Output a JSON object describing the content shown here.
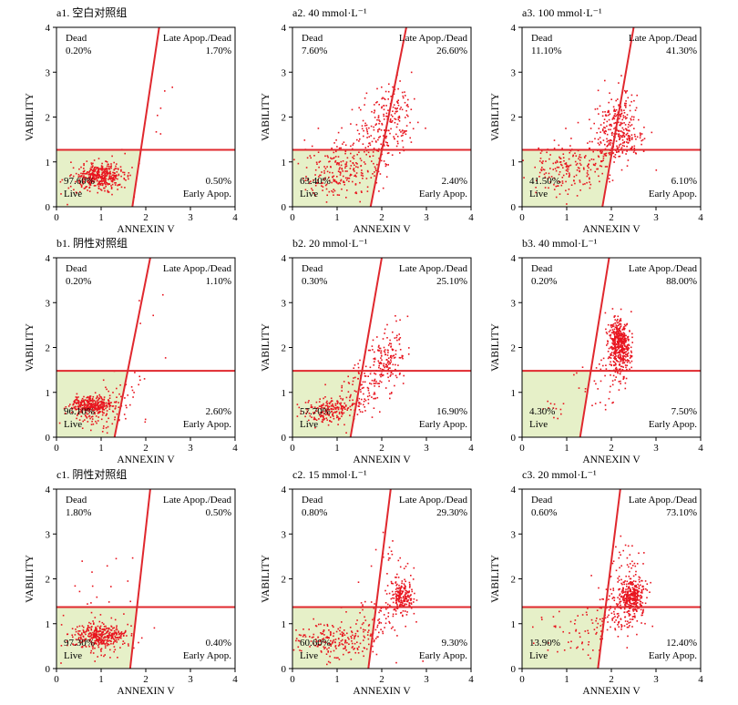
{
  "colors": {
    "point": "#e8141e",
    "gate_line": "#e0282e",
    "live_region_fill": "#e6f0c8",
    "axis": "#000000"
  },
  "axis_titles": {
    "xlabel": "ANNEXIN V",
    "ylabel": "VABILITY"
  },
  "quadrant_names": {
    "dead": "Dead",
    "late": "Late Apop./Dead",
    "live": "Live",
    "early": "Early Apop."
  },
  "chart_data": [
    {
      "id": "a1",
      "type": "scatter",
      "title": "a1. 空白对照组",
      "xlim": [
        0,
        4
      ],
      "ylim": [
        0,
        4
      ],
      "xticks": [
        "0",
        "1",
        "2",
        "3",
        "4"
      ],
      "yticks": [
        "0",
        "1",
        "2",
        "3",
        "4"
      ],
      "gate": {
        "horizontal_y": 1.27,
        "diagonal": [
          [
            1.7,
            0
          ],
          [
            2.3,
            4
          ]
        ]
      },
      "quadrants": {
        "dead": "0.20%",
        "late": "1.70%",
        "live": "97.60%",
        "early": "0.50%"
      },
      "clusters": [
        {
          "n": 360,
          "cx": 1.0,
          "cy": 0.68,
          "sx": 0.28,
          "sy": 0.13
        },
        {
          "n": 50,
          "cx": 0.8,
          "cy": 0.62,
          "sx": 0.3,
          "sy": 0.25
        },
        {
          "n": 8,
          "cx": 1.6,
          "cy": 1.0,
          "sx": 0.3,
          "sy": 0.3
        },
        {
          "n": 6,
          "cx": 2.3,
          "cy": 2.1,
          "sx": 0.15,
          "sy": 0.35
        }
      ]
    },
    {
      "id": "a2",
      "type": "scatter",
      "title": "a2. 40 mmol·L⁻¹",
      "xlim": [
        0,
        4
      ],
      "ylim": [
        0,
        4
      ],
      "xticks": [
        "0",
        "1",
        "2",
        "3",
        "4"
      ],
      "yticks": [
        "0",
        "1",
        "2",
        "3",
        "4"
      ],
      "gate": {
        "horizontal_y": 1.27,
        "diagonal": [
          [
            1.75,
            0
          ],
          [
            2.55,
            4
          ]
        ]
      },
      "quadrants": {
        "dead": "7.60%",
        "late": "26.60%",
        "live": "63.40%",
        "early": "2.40%"
      },
      "clusters": [
        {
          "n": 220,
          "cx": 1.05,
          "cy": 0.8,
          "sx": 0.45,
          "sy": 0.3
        },
        {
          "n": 140,
          "cx": 2.1,
          "cy": 1.9,
          "sx": 0.28,
          "sy": 0.45
        },
        {
          "n": 80,
          "cx": 1.7,
          "cy": 1.3,
          "sx": 0.35,
          "sy": 0.35
        },
        {
          "n": 40,
          "cx": 2.4,
          "cy": 2.3,
          "sx": 0.2,
          "sy": 0.3
        }
      ]
    },
    {
      "id": "a3",
      "type": "scatter",
      "title": "a3. 100 mmol·L⁻¹",
      "xlim": [
        0,
        4
      ],
      "ylim": [
        0,
        4
      ],
      "xticks": [
        "0",
        "1",
        "2",
        "3",
        "4"
      ],
      "yticks": [
        "0",
        "1",
        "2",
        "3",
        "4"
      ],
      "gate": {
        "horizontal_y": 1.27,
        "diagonal": [
          [
            1.8,
            0
          ],
          [
            2.5,
            4
          ]
        ]
      },
      "quadrants": {
        "dead": "11.10%",
        "late": "41.30%",
        "live": "41.50%",
        "early": "6.10%"
      },
      "clusters": [
        {
          "n": 170,
          "cx": 1.0,
          "cy": 0.85,
          "sx": 0.45,
          "sy": 0.3
        },
        {
          "n": 230,
          "cx": 2.2,
          "cy": 1.65,
          "sx": 0.25,
          "sy": 0.35
        },
        {
          "n": 80,
          "cx": 1.75,
          "cy": 1.2,
          "sx": 0.35,
          "sy": 0.35
        },
        {
          "n": 40,
          "cx": 2.3,
          "cy": 2.2,
          "sx": 0.2,
          "sy": 0.35
        }
      ]
    },
    {
      "id": "b1",
      "type": "scatter",
      "title": "b1. 阴性对照组",
      "xlim": [
        0,
        4
      ],
      "ylim": [
        0,
        4
      ],
      "xticks": [
        "0",
        "1",
        "2",
        "3",
        "4"
      ],
      "yticks": [
        "0",
        "1",
        "2",
        "3",
        "4"
      ],
      "gate": {
        "horizontal_y": 1.48,
        "diagonal": [
          [
            1.3,
            0
          ],
          [
            2.1,
            4
          ]
        ]
      },
      "quadrants": {
        "dead": "0.20%",
        "late": "1.10%",
        "live": "96.10%",
        "early": "2.60%"
      },
      "clusters": [
        {
          "n": 300,
          "cx": 0.8,
          "cy": 0.72,
          "sx": 0.22,
          "sy": 0.1
        },
        {
          "n": 90,
          "cx": 0.85,
          "cy": 0.55,
          "sx": 0.3,
          "sy": 0.18
        },
        {
          "n": 30,
          "cx": 1.5,
          "cy": 1.0,
          "sx": 0.35,
          "sy": 0.3
        },
        {
          "n": 5,
          "cx": 2.2,
          "cy": 2.3,
          "sx": 0.3,
          "sy": 0.6
        }
      ]
    },
    {
      "id": "b2",
      "type": "scatter",
      "title": "b2. 20 mmol·L⁻¹",
      "xlim": [
        0,
        4
      ],
      "ylim": [
        0,
        4
      ],
      "xticks": [
        "0",
        "1",
        "2",
        "3",
        "4"
      ],
      "yticks": [
        "0",
        "1",
        "2",
        "3",
        "4"
      ],
      "gate": {
        "horizontal_y": 1.48,
        "diagonal": [
          [
            1.3,
            0
          ],
          [
            2.0,
            4
          ]
        ]
      },
      "quadrants": {
        "dead": "0.30%",
        "late": "25.10%",
        "live": "57.70%",
        "early": "16.90%"
      },
      "clusters": [
        {
          "n": 200,
          "cx": 0.85,
          "cy": 0.6,
          "sx": 0.3,
          "sy": 0.15
        },
        {
          "n": 120,
          "cx": 1.6,
          "cy": 1.1,
          "sx": 0.3,
          "sy": 0.3
        },
        {
          "n": 110,
          "cx": 2.1,
          "cy": 1.7,
          "sx": 0.2,
          "sy": 0.25
        },
        {
          "n": 30,
          "cx": 2.3,
          "cy": 2.2,
          "sx": 0.15,
          "sy": 0.3
        }
      ]
    },
    {
      "id": "b3",
      "type": "scatter",
      "title": "b3. 40 mmol·L⁻¹",
      "xlim": [
        0,
        4
      ],
      "ylim": [
        0,
        4
      ],
      "xticks": [
        "0",
        "1",
        "2",
        "3",
        "4"
      ],
      "yticks": [
        "0",
        "1",
        "2",
        "3",
        "4"
      ],
      "gate": {
        "horizontal_y": 1.48,
        "diagonal": [
          [
            1.3,
            0
          ],
          [
            1.95,
            4
          ]
        ]
      },
      "quadrants": {
        "dead": "0.20%",
        "late": "88.00%",
        "live": "4.30%",
        "early": "7.50%"
      },
      "clusters": [
        {
          "n": 380,
          "cx": 2.2,
          "cy": 2.0,
          "sx": 0.13,
          "sy": 0.3
        },
        {
          "n": 120,
          "cx": 2.15,
          "cy": 2.25,
          "sx": 0.1,
          "sy": 0.2
        },
        {
          "n": 35,
          "cx": 1.8,
          "cy": 1.1,
          "sx": 0.3,
          "sy": 0.3
        },
        {
          "n": 12,
          "cx": 0.8,
          "cy": 0.6,
          "sx": 0.2,
          "sy": 0.15
        }
      ]
    },
    {
      "id": "c1",
      "type": "scatter",
      "title": "c1. 阴性对照组",
      "xlim": [
        0,
        4
      ],
      "ylim": [
        0,
        4
      ],
      "xticks": [
        "0",
        "1",
        "2",
        "3",
        "4"
      ],
      "yticks": [
        "0",
        "1",
        "2",
        "3",
        "4"
      ],
      "gate": {
        "horizontal_y": 1.37,
        "diagonal": [
          [
            1.65,
            0
          ],
          [
            2.1,
            4
          ]
        ]
      },
      "quadrants": {
        "dead": "1.80%",
        "late": "0.50%",
        "live": "97.30%",
        "early": "0.40%"
      },
      "clusters": [
        {
          "n": 320,
          "cx": 1.0,
          "cy": 0.72,
          "sx": 0.3,
          "sy": 0.12
        },
        {
          "n": 60,
          "cx": 0.8,
          "cy": 0.7,
          "sx": 0.35,
          "sy": 0.3
        },
        {
          "n": 14,
          "cx": 1.0,
          "cy": 1.8,
          "sx": 0.4,
          "sy": 0.45
        },
        {
          "n": 6,
          "cx": 1.8,
          "cy": 1.3,
          "sx": 0.3,
          "sy": 0.4
        }
      ]
    },
    {
      "id": "c2",
      "type": "scatter",
      "title": "c2. 15 mmol·L⁻¹",
      "xlim": [
        0,
        4
      ],
      "ylim": [
        0,
        4
      ],
      "xticks": [
        "0",
        "1",
        "2",
        "3",
        "4"
      ],
      "yticks": [
        "0",
        "1",
        "2",
        "3",
        "4"
      ],
      "gate": {
        "horizontal_y": 1.37,
        "diagonal": [
          [
            1.7,
            0
          ],
          [
            2.2,
            4
          ]
        ]
      },
      "quadrants": {
        "dead": "0.80%",
        "late": "29.30%",
        "live": "60.60%",
        "early": "9.30%"
      },
      "clusters": [
        {
          "n": 200,
          "cx": 1.0,
          "cy": 0.65,
          "sx": 0.45,
          "sy": 0.2
        },
        {
          "n": 180,
          "cx": 2.45,
          "cy": 1.6,
          "sx": 0.12,
          "sy": 0.18
        },
        {
          "n": 80,
          "cx": 1.9,
          "cy": 1.1,
          "sx": 0.35,
          "sy": 0.35
        },
        {
          "n": 40,
          "cx": 2.35,
          "cy": 2.1,
          "sx": 0.2,
          "sy": 0.4
        }
      ]
    },
    {
      "id": "c3",
      "type": "scatter",
      "title": "c3. 20 mmol·L⁻¹",
      "xlim": [
        0,
        4
      ],
      "ylim": [
        0,
        4
      ],
      "xticks": [
        "0",
        "1",
        "2",
        "3",
        "4"
      ],
      "yticks": [
        "0",
        "1",
        "2",
        "3",
        "4"
      ],
      "gate": {
        "horizontal_y": 1.37,
        "diagonal": [
          [
            1.7,
            0
          ],
          [
            2.2,
            4
          ]
        ]
      },
      "quadrants": {
        "dead": "0.60%",
        "late": "73.10%",
        "live": "13.90%",
        "early": "12.40%"
      },
      "clusters": [
        {
          "n": 350,
          "cx": 2.45,
          "cy": 1.6,
          "sx": 0.15,
          "sy": 0.22
        },
        {
          "n": 100,
          "cx": 2.1,
          "cy": 1.2,
          "sx": 0.3,
          "sy": 0.3
        },
        {
          "n": 50,
          "cx": 1.2,
          "cy": 0.75,
          "sx": 0.4,
          "sy": 0.25
        },
        {
          "n": 40,
          "cx": 2.4,
          "cy": 2.3,
          "sx": 0.2,
          "sy": 0.35
        }
      ]
    }
  ]
}
